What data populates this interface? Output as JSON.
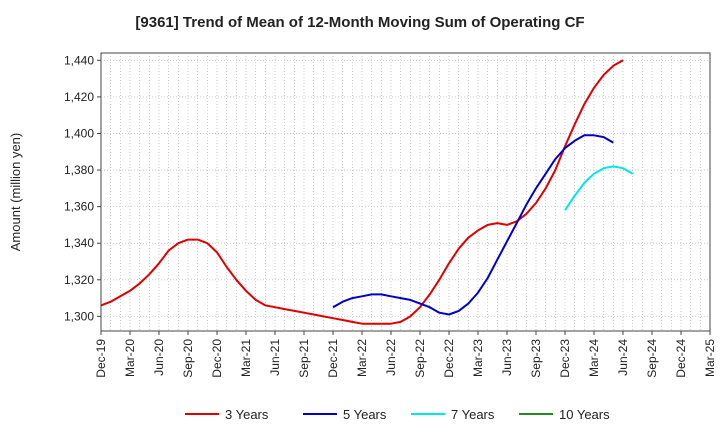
{
  "chart_data": {
    "type": "line",
    "title": "[9361]  Trend of Mean of 12-Month Moving Sum of Operating CF",
    "xlabel": "",
    "ylabel": "Amount (million yen)",
    "ylim": [
      1292,
      1444
    ],
    "yticks": [
      1300,
      1320,
      1340,
      1360,
      1380,
      1400,
      1420,
      1440
    ],
    "ytick_labels": [
      "1,300",
      "1,320",
      "1,340",
      "1,360",
      "1,380",
      "1,400",
      "1,420",
      "1,440"
    ],
    "x_start": "Dec-19",
    "x_end": "Mar-25",
    "x_labels": [
      "Dec-19",
      "Mar-20",
      "Jun-20",
      "Sep-20",
      "Dec-20",
      "Mar-21",
      "Jun-21",
      "Sep-21",
      "Dec-21",
      "Mar-22",
      "Jun-22",
      "Sep-22",
      "Dec-22",
      "Mar-23",
      "Jun-23",
      "Sep-23",
      "Dec-23",
      "Mar-24",
      "Jun-24",
      "Sep-24",
      "Dec-24",
      "Mar-25"
    ],
    "grid": true,
    "legend_position": "bottom",
    "series": [
      {
        "name": "3 Years",
        "color": "#e00000",
        "start_index": 0,
        "values": [
          1306,
          1308,
          1311,
          1314,
          1318,
          1323,
          1329,
          1336,
          1340,
          1342,
          1342,
          1340,
          1335,
          1327,
          1320,
          1314,
          1309,
          1306,
          1305,
          1304,
          1303,
          1302,
          1301,
          1300,
          1299,
          1298,
          1297,
          1296,
          1296,
          1296,
          1296,
          1297,
          1300,
          1305,
          1312,
          1320,
          1329,
          1337,
          1343,
          1347,
          1350,
          1351,
          1350,
          1352,
          1356,
          1362,
          1370,
          1380,
          1393,
          1405,
          1416,
          1425,
          1432,
          1437,
          1440
        ]
      },
      {
        "name": "5 Years",
        "color": "#0000cc",
        "start_index": 24,
        "values": [
          1305,
          1308,
          1310,
          1311,
          1312,
          1312,
          1311,
          1310,
          1309,
          1307,
          1305,
          1302,
          1301,
          1303,
          1307,
          1313,
          1321,
          1331,
          1341,
          1351,
          1361,
          1370,
          1378,
          1386,
          1392,
          1396,
          1399,
          1399,
          1398,
          1395
        ]
      },
      {
        "name": "7 Years",
        "color": "#00e5ee",
        "start_index": 48,
        "values": [
          1358,
          1366,
          1373,
          1378,
          1381,
          1382,
          1381,
          1378
        ]
      },
      {
        "name": "10 Years",
        "color": "#228b22",
        "start_index": 0,
        "values": []
      }
    ]
  }
}
